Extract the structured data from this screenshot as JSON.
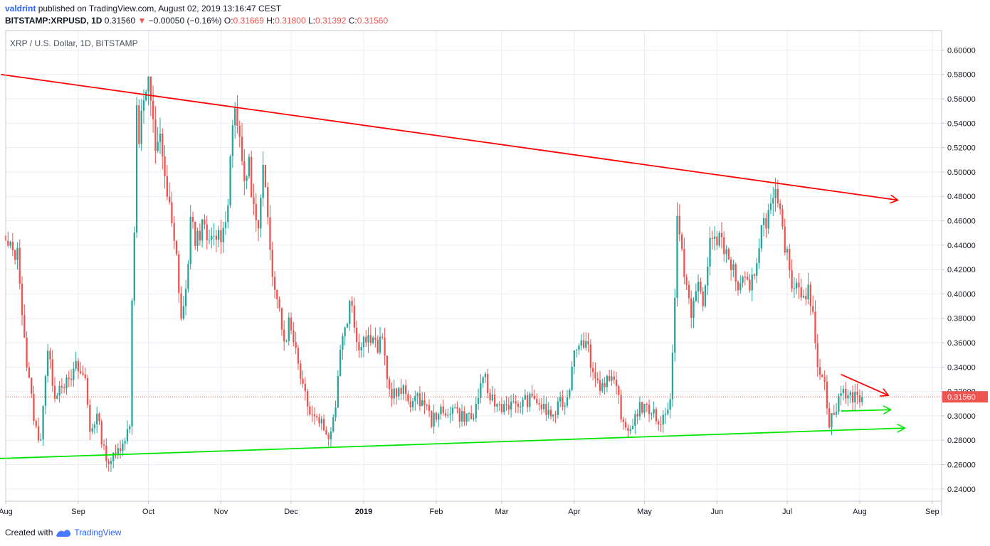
{
  "header": {
    "author": "valdrint",
    "published_text": "published on TradingView.com, August 02, 2019 13:16:47 CEST",
    "symbol": "BITSTAMP:XRPUSD, 1D",
    "last": "0.31560",
    "change_arrow": "▼",
    "change": "−0.00050 (−0.16%)",
    "o_label": "O:",
    "o_value": "0.31669",
    "h_label": "H:",
    "h_value": "0.31800",
    "l_label": "L:",
    "l_value": "0.31392",
    "c_label": "C:",
    "c_value": "0.31560"
  },
  "footer": {
    "created_with": "Created with",
    "brand": "TradingView"
  },
  "colors": {
    "up": "#26a69a",
    "down": "#ef5350",
    "resistance": "#ff0000",
    "support": "#00e600",
    "grid": "#e9eef4",
    "axis_line": "#bfc4cc",
    "price_line": "#ef5350",
    "price_label_bg": "#ef5350"
  },
  "chart_data": {
    "type": "candlestick",
    "title": "XRP / U.S. Dollar, 1D, BITSTAMP",
    "symbol": "BITSTAMP:XRPUSD",
    "interval": "1D",
    "ylim": [
      0.23,
      0.616
    ],
    "y_ticks": [
      "0.60000",
      "0.58000",
      "0.56000",
      "0.54000",
      "0.52000",
      "0.50000",
      "0.48000",
      "0.46000",
      "0.44000",
      "0.42000",
      "0.40000",
      "0.38000",
      "0.36000",
      "0.34000",
      "0.32000",
      "0.30000",
      "0.28000",
      "0.26000",
      "0.24000"
    ],
    "x_ticks": [
      {
        "label": "Aug",
        "day": 0
      },
      {
        "label": "Sep",
        "day": 31
      },
      {
        "label": "Oct",
        "day": 61
      },
      {
        "label": "Nov",
        "day": 92
      },
      {
        "label": "Dec",
        "day": 122
      },
      {
        "label": "2019",
        "day": 153
      },
      {
        "label": "Feb",
        "day": 184
      },
      {
        "label": "Mar",
        "day": 212
      },
      {
        "label": "Apr",
        "day": 243
      },
      {
        "label": "May",
        "day": 273
      },
      {
        "label": "Jun",
        "day": 304
      },
      {
        "label": "Jul",
        "day": 334
      },
      {
        "label": "Aug",
        "day": 365
      },
      {
        "label": "Sep",
        "day": 396
      }
    ],
    "x_range_days": [
      0,
      400
    ],
    "last_price": 0.3156,
    "last_price_label": "0.31560",
    "waypoints": [
      [
        0,
        0.44
      ],
      [
        5,
        0.432
      ],
      [
        6,
        0.412
      ],
      [
        9,
        0.342
      ],
      [
        12,
        0.3
      ],
      [
        14,
        0.278
      ],
      [
        15,
        0.285
      ],
      [
        17,
        0.335
      ],
      [
        18,
        0.352
      ],
      [
        21,
        0.318
      ],
      [
        24,
        0.328
      ],
      [
        27,
        0.326
      ],
      [
        30,
        0.34
      ],
      [
        34,
        0.33
      ],
      [
        36,
        0.288
      ],
      [
        39,
        0.3
      ],
      [
        42,
        0.272
      ],
      [
        44,
        0.262
      ],
      [
        47,
        0.268
      ],
      [
        50,
        0.28
      ],
      [
        53,
        0.29
      ],
      [
        54,
        0.4
      ],
      [
        55,
        0.45
      ],
      [
        56,
        0.56
      ],
      [
        57,
        0.53
      ],
      [
        59,
        0.56
      ],
      [
        61,
        0.57
      ],
      [
        62,
        0.555
      ],
      [
        64,
        0.52
      ],
      [
        66,
        0.535
      ],
      [
        68,
        0.49
      ],
      [
        70,
        0.47
      ],
      [
        72,
        0.44
      ],
      [
        73,
        0.43
      ],
      [
        75,
        0.38
      ],
      [
        77,
        0.4
      ],
      [
        79,
        0.46
      ],
      [
        81,
        0.445
      ],
      [
        84,
        0.455
      ],
      [
        87,
        0.44
      ],
      [
        90,
        0.448
      ],
      [
        93,
        0.45
      ],
      [
        95,
        0.48
      ],
      [
        97,
        0.54
      ],
      [
        98,
        0.56
      ],
      [
        100,
        0.52
      ],
      [
        102,
        0.495
      ],
      [
        104,
        0.505
      ],
      [
        106,
        0.47
      ],
      [
        108,
        0.45
      ],
      [
        110,
        0.5
      ],
      [
        112,
        0.46
      ],
      [
        114,
        0.42
      ],
      [
        116,
        0.4
      ],
      [
        118,
        0.375
      ],
      [
        120,
        0.358
      ],
      [
        121,
        0.38
      ],
      [
        123,
        0.365
      ],
      [
        125,
        0.345
      ],
      [
        127,
        0.325
      ],
      [
        128,
        0.32
      ],
      [
        130,
        0.305
      ],
      [
        133,
        0.298
      ],
      [
        135,
        0.296
      ],
      [
        137,
        0.285
      ],
      [
        139,
        0.285
      ],
      [
        141,
        0.31
      ],
      [
        143,
        0.36
      ],
      [
        146,
        0.38
      ],
      [
        147,
        0.4
      ],
      [
        148,
        0.39
      ],
      [
        150,
        0.358
      ],
      [
        153,
        0.363
      ],
      [
        156,
        0.362
      ],
      [
        159,
        0.356
      ],
      [
        161,
        0.362
      ],
      [
        164,
        0.32
      ],
      [
        167,
        0.318
      ],
      [
        170,
        0.32
      ],
      [
        173,
        0.312
      ],
      [
        176,
        0.313
      ],
      [
        179,
        0.312
      ],
      [
        182,
        0.295
      ],
      [
        185,
        0.305
      ],
      [
        188,
        0.298
      ],
      [
        191,
        0.31
      ],
      [
        194,
        0.3
      ],
      [
        197,
        0.3
      ],
      [
        200,
        0.298
      ],
      [
        202,
        0.318
      ],
      [
        205,
        0.33
      ],
      [
        206,
        0.32
      ],
      [
        209,
        0.31
      ],
      [
        212,
        0.308
      ],
      [
        215,
        0.31
      ],
      [
        218,
        0.307
      ],
      [
        221,
        0.312
      ],
      [
        224,
        0.313
      ],
      [
        227,
        0.313
      ],
      [
        229,
        0.307
      ],
      [
        232,
        0.302
      ],
      [
        234,
        0.3
      ],
      [
        237,
        0.31
      ],
      [
        240,
        0.312
      ],
      [
        243,
        0.355
      ],
      [
        246,
        0.365
      ],
      [
        249,
        0.355
      ],
      [
        251,
        0.335
      ],
      [
        254,
        0.325
      ],
      [
        257,
        0.33
      ],
      [
        260,
        0.325
      ],
      [
        262,
        0.315
      ],
      [
        264,
        0.29
      ],
      [
        266,
        0.288
      ],
      [
        268,
        0.295
      ],
      [
        271,
        0.308
      ],
      [
        273,
        0.305
      ],
      [
        276,
        0.305
      ],
      [
        279,
        0.295
      ],
      [
        282,
        0.3
      ],
      [
        284,
        0.318
      ],
      [
        285,
        0.35
      ],
      [
        286,
        0.4
      ],
      [
        287,
        0.46
      ],
      [
        289,
        0.43
      ],
      [
        291,
        0.41
      ],
      [
        293,
        0.38
      ],
      [
        296,
        0.41
      ],
      [
        298,
        0.39
      ],
      [
        301,
        0.445
      ],
      [
        303,
        0.44
      ],
      [
        306,
        0.45
      ],
      [
        308,
        0.43
      ],
      [
        311,
        0.42
      ],
      [
        313,
        0.405
      ],
      [
        316,
        0.41
      ],
      [
        318,
        0.4
      ],
      [
        321,
        0.43
      ],
      [
        323,
        0.455
      ],
      [
        326,
        0.465
      ],
      [
        329,
        0.478
      ],
      [
        331,
        0.462
      ],
      [
        334,
        0.43
      ],
      [
        336,
        0.41
      ],
      [
        339,
        0.408
      ],
      [
        341,
        0.4
      ],
      [
        343,
        0.402
      ],
      [
        345,
        0.38
      ],
      [
        347,
        0.345
      ],
      [
        350,
        0.325
      ],
      [
        352,
        0.295
      ],
      [
        355,
        0.305
      ],
      [
        357,
        0.32
      ],
      [
        360,
        0.318
      ],
      [
        363,
        0.315
      ],
      [
        366,
        0.316
      ]
    ],
    "annotations": [
      {
        "type": "trendline",
        "name": "resistance",
        "color": "#ff0000",
        "from": [
          -2,
          0.58
        ],
        "to": [
          381,
          0.477
        ],
        "arrow": true
      },
      {
        "type": "trendline",
        "name": "support",
        "color": "#00e600",
        "from": [
          -49,
          0.262
        ],
        "to": [
          384,
          0.29
        ],
        "arrow": true
      },
      {
        "type": "trendline",
        "name": "local-resistance",
        "color": "#ff0000",
        "from": [
          357,
          0.334
        ],
        "to": [
          377,
          0.317
        ],
        "arrow": true
      },
      {
        "type": "trendline",
        "name": "local-support",
        "color": "#00e600",
        "from": [
          357,
          0.304
        ],
        "to": [
          378,
          0.305
        ],
        "arrow": true
      }
    ]
  }
}
